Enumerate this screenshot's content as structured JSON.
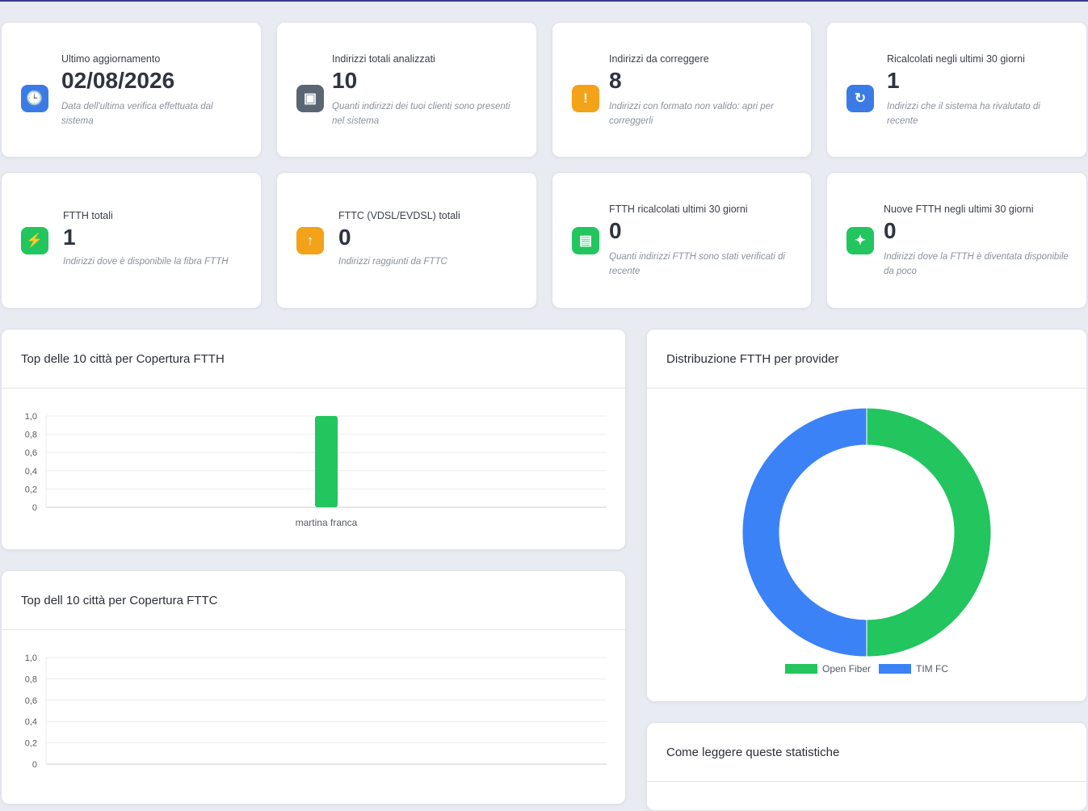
{
  "stats": [
    {
      "label": "Ultimo aggiornamento",
      "value": "02/08/2026",
      "desc": "Data dell'ultima verifica effettuata dal sistema",
      "icon": "clock-icon",
      "color": "#3b7be6"
    },
    {
      "label": "Indirizzi totali analizzati",
      "value": "10",
      "desc": "Quanti indirizzi dei tuoi clienti sono presenti nel sistema",
      "icon": "package-icon",
      "color": "#5b6675"
    },
    {
      "label": "Indirizzi da correggere",
      "value": "8",
      "desc": "Indirizzi con formato non valido: apri per correggerli",
      "icon": "warning-icon",
      "color": "#f3a21a"
    },
    {
      "label": "Ricalcolati negli ultimi 30 giorni",
      "value": "1",
      "desc": "Indirizzi che il sistema ha rivalutato di recente",
      "icon": "refresh-icon",
      "color": "#3b7be6"
    },
    {
      "label": "FTTH totali",
      "value": "1",
      "desc": "Indirizzi dove è disponibile la fibra FTTH",
      "icon": "lightning-icon",
      "color": "#22c55e"
    },
    {
      "label": "FTTC (VDSL/EVDSL) totali",
      "value": "0",
      "desc": "Indirizzi raggiunti da FTTC",
      "icon": "up-arrow-icon",
      "color": "#f3a21a"
    },
    {
      "label": "FTTH ricalcolati ultimi 30 giorni",
      "value": "0",
      "desc": "Quanti indirizzi FTTH sono stati verificati di recente",
      "icon": "calendar-icon",
      "color": "#22c55e"
    },
    {
      "label": "Nuove FTTH negli ultimi 30 giorni",
      "value": "0",
      "desc": "Indirizzi dove la FTTH è diventata disponibile da poco",
      "icon": "sparkles-icon",
      "color": "#22c55e"
    }
  ],
  "panels": {
    "ftth_cities_title": "Top delle 10 città per Copertura FTTH",
    "fttc_cities_title": "Top dell 10 città per Copertura FTTC",
    "provider_title": "Distribuzione FTTH per provider",
    "help_title": "Come leggere queste statistiche"
  },
  "chart_data": [
    {
      "type": "bar",
      "categories": [
        "martina franca"
      ],
      "values": [
        1
      ],
      "ylim": [
        0,
        1
      ],
      "yticks": [
        "1,0",
        "0,8",
        "0,6",
        "0,4",
        "0,2",
        "0"
      ],
      "bar_color": "#22c55e"
    },
    {
      "type": "bar",
      "categories": [],
      "values": [],
      "ylim": [
        0,
        1
      ],
      "yticks": [
        "1,0",
        "0,8",
        "0,6",
        "0,4",
        "0,2",
        "0"
      ]
    },
    {
      "type": "pie",
      "categories": [
        "Open Fiber",
        "TIM FC"
      ],
      "values": [
        1,
        1
      ],
      "colors": [
        "#22c55e",
        "#3b82f6"
      ],
      "legend": "bottom"
    }
  ]
}
